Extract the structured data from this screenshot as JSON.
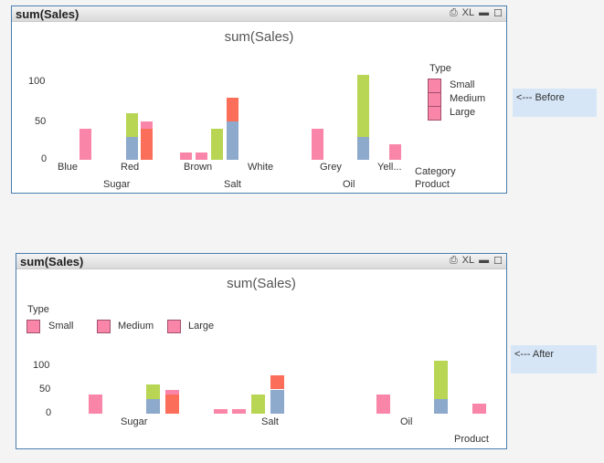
{
  "colors": {
    "Small": "#f986a8",
    "blue": "#8da9cb",
    "green": "#b8d554",
    "red": "#fa6e5a"
  },
  "before": {
    "window_title": "sum(Sales)",
    "icons": [
      "print-icon",
      "xl-icon",
      "minimize-icon",
      "maximize-icon"
    ],
    "xl": "XL",
    "chart_title": "sum(Sales)",
    "legend_title": "Type",
    "legend": [
      "Small",
      "Medium",
      "Large"
    ],
    "y_ticks": [
      "100",
      "50",
      "0"
    ],
    "categories": [
      "Blue",
      "Red",
      "Brown",
      "White",
      "Grey",
      "Yell..."
    ],
    "products": [
      "Sugar",
      "Salt",
      "Oil"
    ],
    "dim1": "Category",
    "dim2": "Product",
    "note": "<--- Before"
  },
  "after": {
    "window_title": "sum(Sales)",
    "xl": "XL",
    "chart_title": "sum(Sales)",
    "legend_title": "Type",
    "legend": [
      "Small",
      "Medium",
      "Large"
    ],
    "y_ticks": [
      "100",
      "50",
      "0"
    ],
    "products": [
      "Sugar",
      "Salt",
      "Oil"
    ],
    "dim2": "Product",
    "note": "<--- After"
  },
  "chart_data": {
    "type": "bar",
    "stacked": true,
    "ylim": [
      0,
      120
    ],
    "bars": [
      {
        "product": "Sugar",
        "category": "Blue",
        "segments": [
          {
            "color": "pink",
            "value": 40
          }
        ]
      },
      {
        "product": "Sugar",
        "category": "Red",
        "segments": [
          {
            "color": "blue",
            "value": 30
          },
          {
            "color": "green",
            "value": 30
          }
        ]
      },
      {
        "product": "Sugar",
        "category": "Red",
        "segments": [
          {
            "color": "red",
            "value": 40
          },
          {
            "color": "pink",
            "value": 10
          }
        ]
      },
      {
        "product": "Salt",
        "category": "Brown",
        "segments": [
          {
            "color": "pink",
            "value": 10
          }
        ]
      },
      {
        "product": "Salt",
        "category": "Brown",
        "segments": [
          {
            "color": "pink",
            "value": 10
          }
        ]
      },
      {
        "product": "Salt",
        "category": "Brown",
        "segments": [
          {
            "color": "green",
            "value": 40
          }
        ]
      },
      {
        "product": "Salt",
        "category": "Brown",
        "segments": [
          {
            "color": "blue",
            "value": 50
          },
          {
            "color": "red",
            "value": 30
          }
        ]
      },
      {
        "product": "Oil",
        "category": "Grey",
        "segments": [
          {
            "color": "pink",
            "value": 40
          }
        ]
      },
      {
        "product": "Oil",
        "category": "Grey",
        "segments": [
          {
            "color": "blue",
            "value": 30
          },
          {
            "color": "green",
            "value": 80
          }
        ]
      },
      {
        "product": "Oil",
        "category": "Yell...",
        "segments": [
          {
            "color": "pink",
            "value": 20
          }
        ]
      }
    ]
  }
}
